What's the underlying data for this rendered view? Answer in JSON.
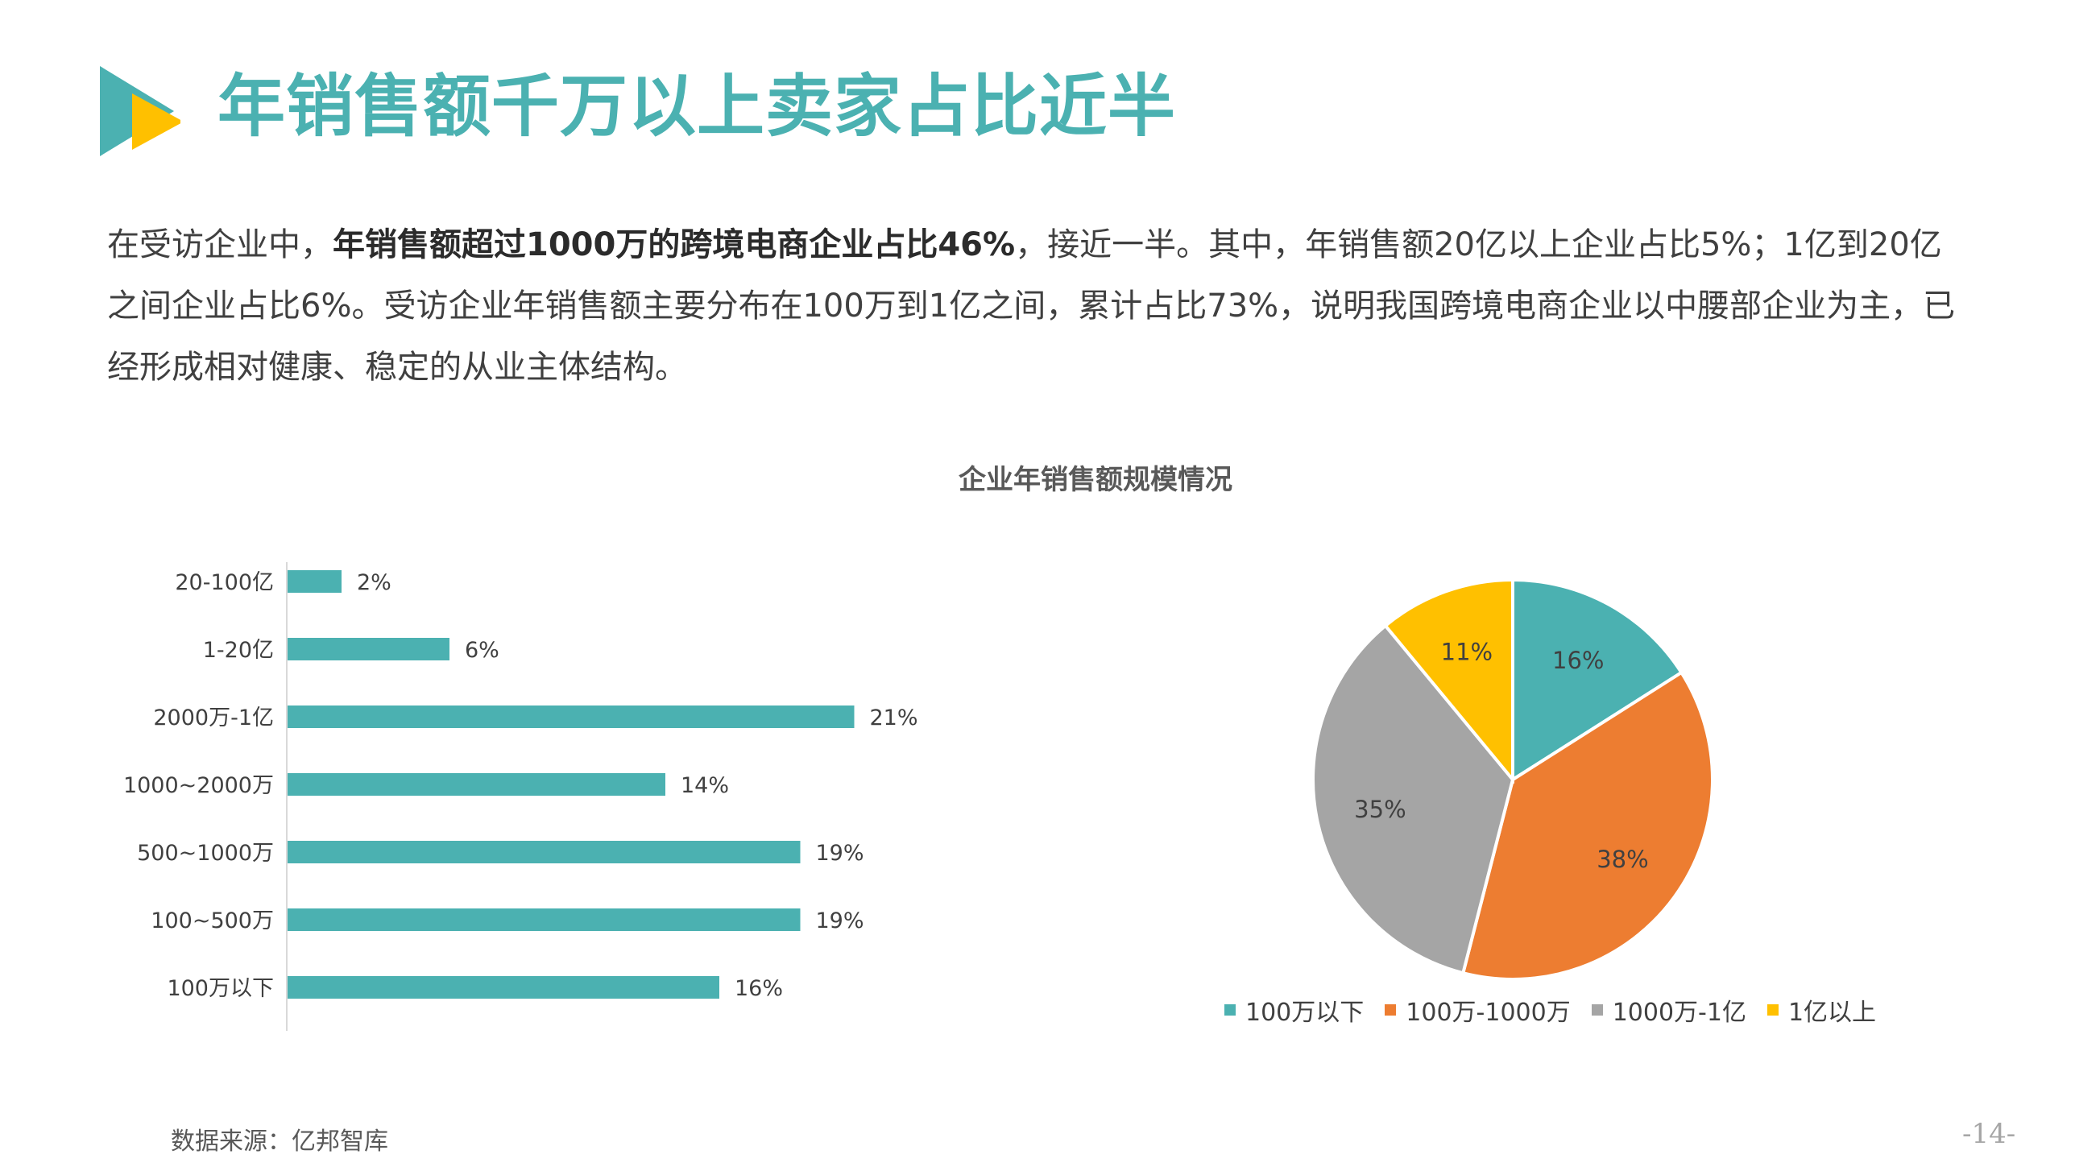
{
  "header": {
    "title": "年销售额千万以上卖家占比近半"
  },
  "summary": {
    "p1": "在受访企业中，",
    "p2_bold": "年销售额超过1000万的跨境电商企业占比46%",
    "p3": "，接近一半。其中，年销售额20亿以上企业占比5%；1亿到20亿之间企业占比6%。受访企业年销售额主要分布在100万到1亿之间，累计占比73%，说明我国跨境电商企业以中腰部企业为主，已经形成相对健康、稳定的从业主体结构。"
  },
  "chart_title": "企业年销售额规模情况",
  "chart_data": [
    {
      "type": "bar",
      "orientation": "horizontal",
      "title": "",
      "categories": [
        "20-100亿",
        "1-20亿",
        "2000万-1亿",
        "1000~2000万",
        "500~1000万",
        "100~500万",
        "100万以下"
      ],
      "values": [
        2,
        6,
        21,
        14,
        19,
        19,
        16
      ],
      "value_labels": [
        "2%",
        "6%",
        "21%",
        "14%",
        "19%",
        "19%",
        "16%"
      ],
      "unit": "%",
      "xlim": [
        0,
        25
      ],
      "color": "#4BB1B1",
      "grid": false
    },
    {
      "type": "pie",
      "title": "",
      "categories": [
        "100万以下",
        "100万-1000万",
        "1000万-1亿",
        "1亿以上"
      ],
      "values": [
        16,
        38,
        35,
        11
      ],
      "value_labels": [
        "16%",
        "38%",
        "35%",
        "11%"
      ],
      "colors": [
        "#4BB1B1",
        "#ED7D31",
        "#A5A5A5",
        "#FFC000"
      ],
      "legend": "bottom"
    }
  ],
  "footer": {
    "source": "数据来源：亿邦智库",
    "page_number": "-14-"
  }
}
